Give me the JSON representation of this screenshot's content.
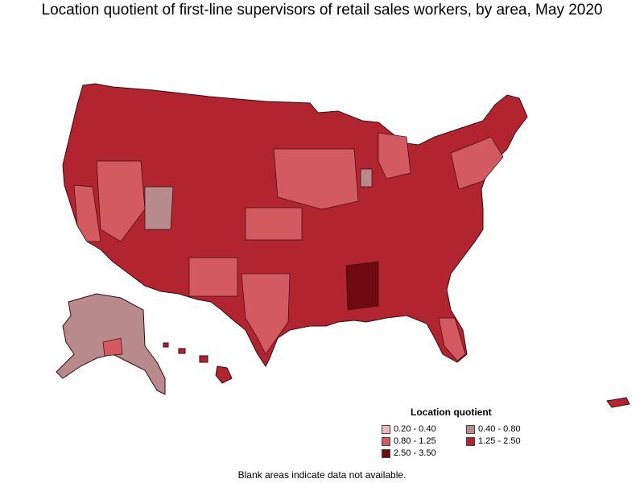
{
  "title": "Location quotient of first-line supervisors of retail sales workers, by area, May 2020",
  "legend": {
    "title": "Location quotient",
    "items": [
      {
        "label": "0.20 - 0.40",
        "color": "#f0b8bd"
      },
      {
        "label": "0.40 - 0.80",
        "color": "#b88a8c"
      },
      {
        "label": "0.80 - 1.25",
        "color": "#d45a62"
      },
      {
        "label": "1.25 - 2.50",
        "color": "#b22430"
      },
      {
        "label": "2.50 - 3.50",
        "color": "#6e0a10"
      }
    ]
  },
  "footnote": "Blank areas indicate data not available.",
  "map": {
    "regions": [
      {
        "name": "contiguous-us",
        "class": "1.25 - 2.50"
      },
      {
        "name": "alaska",
        "class": "0.40 - 0.80"
      },
      {
        "name": "hawaii",
        "class": "1.25 - 2.50"
      },
      {
        "name": "puerto-rico",
        "class": "1.25 - 2.50"
      }
    ],
    "colors": {
      "border": "#3a0a0e"
    }
  }
}
